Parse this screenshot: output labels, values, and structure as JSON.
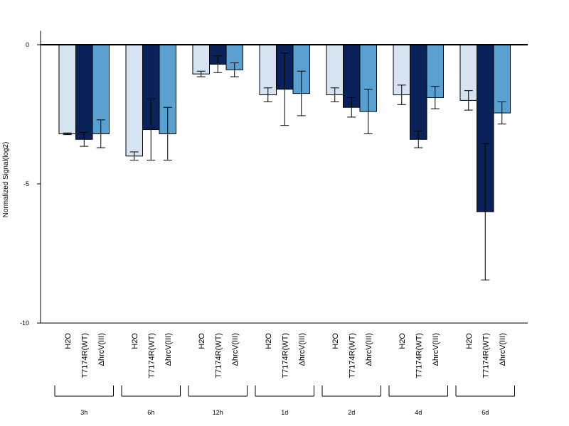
{
  "chart_data": {
    "type": "bar",
    "title": "",
    "xlabel": "",
    "ylabel": "Normalized Signal(log2)",
    "ylim": [
      -10,
      0.5
    ],
    "yticks": [
      0,
      -5,
      -10
    ],
    "ytick_labels": [
      "0",
      "-5",
      "-10"
    ],
    "grid": false,
    "legend": "none",
    "colors": {
      "H2O": "#d6e4f2",
      "T7174R(WT)": "#0a2159",
      "ΔhrcV(III)": "#5aa1d1"
    },
    "categories": [
      "H2O",
      "T7174R(WT)",
      "ΔhrcV(III)"
    ],
    "groups": [
      {
        "label": "3h",
        "values": [
          -3.2,
          -3.4,
          -3.2
        ],
        "error": [
          0.03,
          0.25,
          0.5
        ]
      },
      {
        "label": "6h",
        "values": [
          -4.0,
          -3.05,
          -3.2
        ],
        "error": [
          0.15,
          1.1,
          0.95
        ]
      },
      {
        "label": "12h",
        "values": [
          -1.05,
          -0.7,
          -0.9
        ],
        "error": [
          0.1,
          0.3,
          0.25
        ]
      },
      {
        "label": "1d",
        "values": [
          -1.8,
          -1.6,
          -1.75
        ],
        "error": [
          0.25,
          1.3,
          0.8
        ]
      },
      {
        "label": "2d",
        "values": [
          -1.8,
          -2.25,
          -2.4
        ],
        "error": [
          0.25,
          0.35,
          0.8
        ]
      },
      {
        "label": "4d",
        "values": [
          -1.8,
          -3.4,
          -1.9
        ],
        "error": [
          0.35,
          0.3,
          0.4
        ]
      },
      {
        "label": "6d",
        "values": [
          -2.0,
          -6.0,
          -2.45
        ],
        "error": [
          0.35,
          2.45,
          0.4
        ]
      }
    ]
  }
}
